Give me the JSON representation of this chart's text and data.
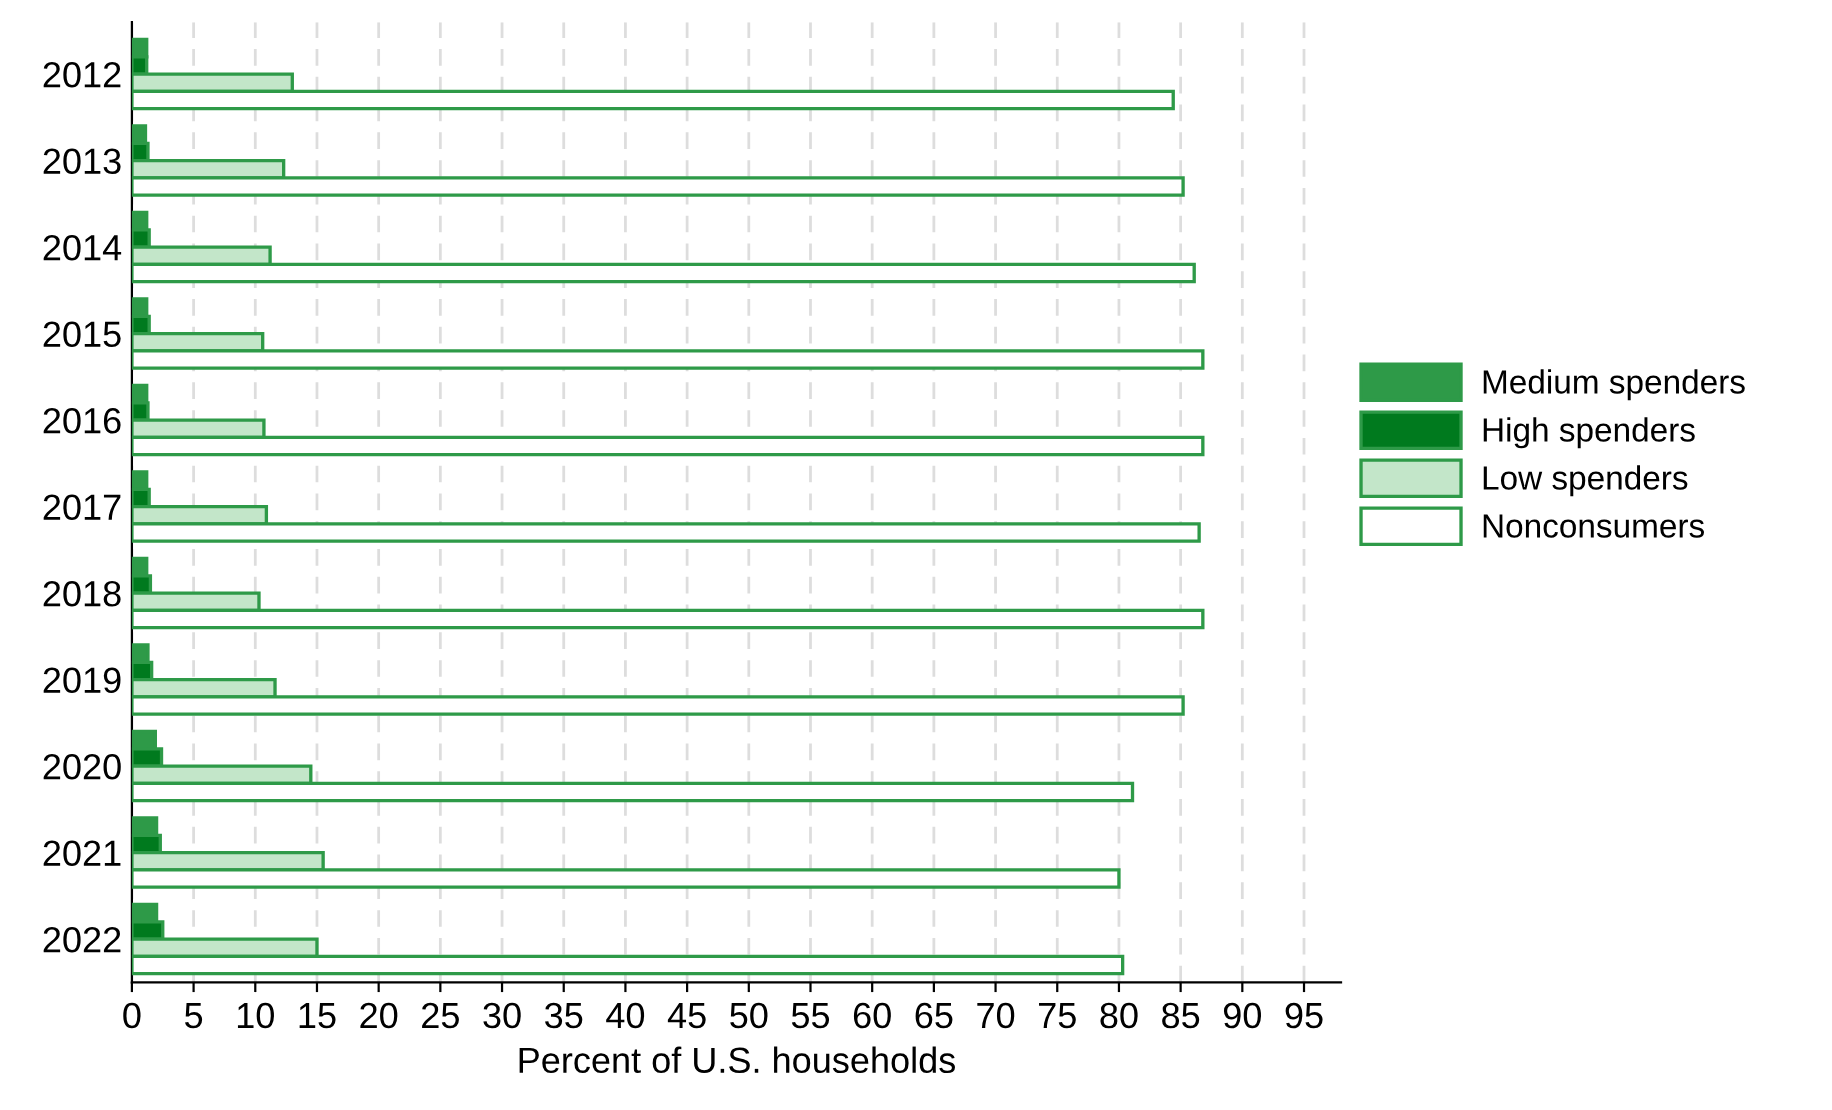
{
  "chart_data": {
    "type": "bar",
    "orientation": "horizontal",
    "xlabel": "Percent of U.S. households",
    "categories": [
      "2012",
      "2013",
      "2014",
      "2015",
      "2016",
      "2017",
      "2018",
      "2019",
      "2020",
      "2021",
      "2022"
    ],
    "series": [
      {
        "name": "Medium spenders",
        "color": "#2e9a48",
        "values": [
          1.2,
          1.1,
          1.2,
          1.2,
          1.2,
          1.2,
          1.2,
          1.3,
          1.9,
          2.0,
          2.0
        ]
      },
      {
        "name": "High spenders",
        "color": "#007a1e",
        "values": [
          1.2,
          1.3,
          1.4,
          1.4,
          1.3,
          1.4,
          1.5,
          1.6,
          2.4,
          2.3,
          2.5
        ]
      },
      {
        "name": "Low spenders",
        "color": "#c3e6c9",
        "values": [
          13.0,
          12.3,
          11.2,
          10.6,
          10.7,
          10.9,
          10.3,
          11.6,
          14.5,
          15.5,
          15.0
        ]
      },
      {
        "name": "Nonconsumers",
        "color": "#ffffff",
        "values": [
          84.4,
          85.2,
          86.1,
          86.8,
          86.8,
          86.5,
          86.8,
          85.2,
          81.1,
          80.0,
          80.3
        ]
      }
    ],
    "xlim": [
      0,
      98
    ],
    "xticks": [
      0,
      5,
      10,
      15,
      20,
      25,
      30,
      35,
      40,
      45,
      50,
      55,
      60,
      65,
      70,
      75,
      80,
      85,
      90,
      95
    ],
    "grid": "x",
    "legend": "right"
  }
}
